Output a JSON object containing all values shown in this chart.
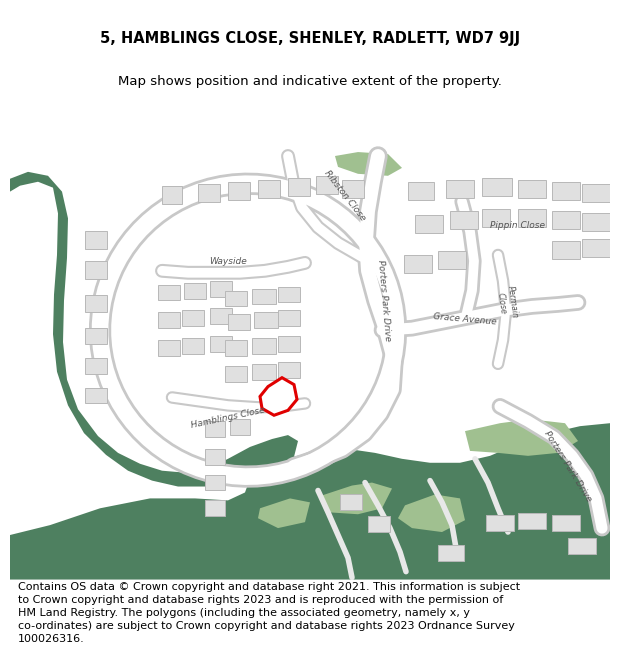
{
  "title_line1": "5, HAMBLINGS CLOSE, SHENLEY, RADLETT, WD7 9JJ",
  "title_line2": "Map shows position and indicative extent of the property.",
  "footer_text": "Contains OS data © Crown copyright and database right 2021. This information is subject\nto Crown copyright and database rights 2023 and is reproduced with the permission of\nHM Land Registry. The polygons (including the associated geometry, namely x, y\nco-ordinates) are subject to Crown copyright and database rights 2023 Ordnance Survey\n100026316.",
  "title_fontsize": 10.5,
  "subtitle_fontsize": 9.5,
  "footer_fontsize": 8.0,
  "bg_color": "#ffffff",
  "map_bg": "#f5f5f5",
  "road_color": "#c8c8c8",
  "road_fill": "#ffffff",
  "building_fill": "#e0e0e0",
  "building_edge": "#b8b8b8",
  "green_dark": "#4e8060",
  "green_light": "#a0c090",
  "highlight_color": "#e00000",
  "text_color": "#555555",
  "label_fontsize": 6.5,
  "label_fontsize_small": 5.8
}
